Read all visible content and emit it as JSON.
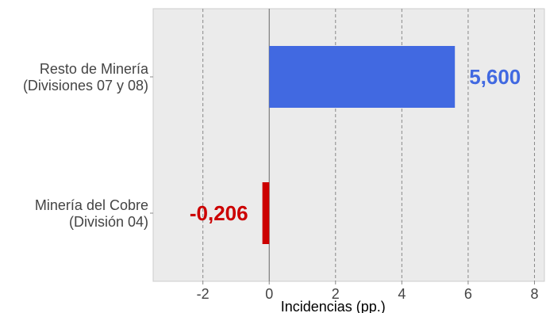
{
  "chart_data": {
    "type": "bar",
    "orientation": "horizontal",
    "categories": [
      [
        "Resto de Minería",
        "(Divisiones 07 y 08)"
      ],
      [
        "Minería del Cobre",
        "(División 04)"
      ]
    ],
    "values": [
      5.6,
      -0.206
    ],
    "value_labels": [
      "5,600",
      "-0,206"
    ],
    "bar_colors": [
      "#4169e1",
      "#cc0000"
    ],
    "xlabel": "Incidencias (pp.)",
    "xlim": [
      -3.5,
      8.3
    ],
    "xticks": [
      -2,
      0,
      2,
      4,
      6,
      8
    ],
    "grid": true,
    "background": "#ebebeb",
    "grid_color": "#888888"
  }
}
